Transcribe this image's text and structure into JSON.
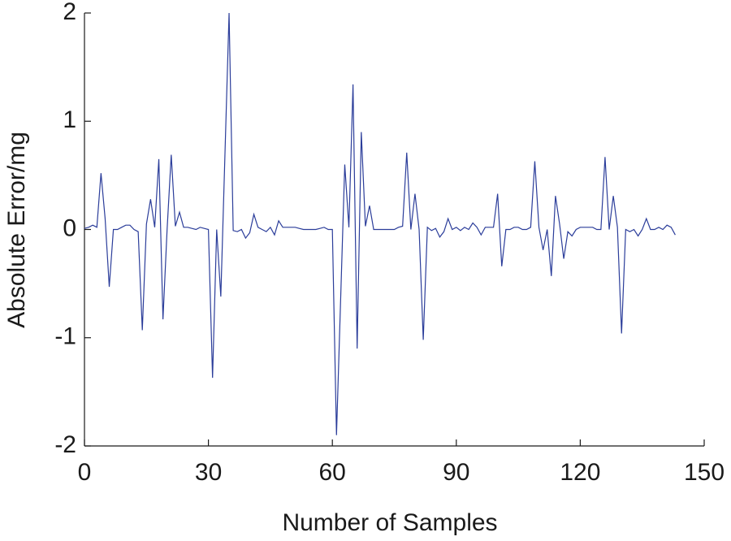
{
  "chart_data": {
    "type": "line",
    "xlabel": "Number of Samples",
    "ylabel": "Absolute Error/mg",
    "x": [
      0,
      1,
      2,
      3,
      4,
      5,
      6,
      7,
      8,
      9,
      10,
      11,
      12,
      13,
      14,
      15,
      16,
      17,
      18,
      19,
      20,
      21,
      22,
      23,
      24,
      25,
      26,
      27,
      28,
      29,
      30,
      31,
      32,
      33,
      34,
      35,
      36,
      37,
      38,
      39,
      40,
      41,
      42,
      43,
      44,
      45,
      46,
      47,
      48,
      49,
      50,
      51,
      52,
      53,
      54,
      55,
      56,
      57,
      58,
      59,
      60,
      61,
      62,
      63,
      64,
      65,
      66,
      67,
      68,
      69,
      70,
      71,
      72,
      73,
      74,
      75,
      76,
      77,
      78,
      79,
      80,
      81,
      82,
      83,
      84,
      85,
      86,
      87,
      88,
      89,
      90,
      91,
      92,
      93,
      94,
      95,
      96,
      97,
      98,
      99,
      100,
      101,
      102,
      103,
      104,
      105,
      106,
      107,
      108,
      109,
      110,
      111,
      112,
      113,
      114,
      115,
      116,
      117,
      118,
      119,
      120,
      121,
      122,
      123,
      124,
      125,
      126,
      127,
      128,
      129,
      130,
      131,
      132,
      133,
      134,
      135,
      136,
      137,
      138,
      139,
      140,
      141,
      142,
      143
    ],
    "series": [
      {
        "name": "Absolute Error",
        "color": "#2b3d9a",
        "values": [
          0.01,
          0.02,
          0.04,
          0.02,
          0.52,
          0.1,
          -0.53,
          0.0,
          0.0,
          0.02,
          0.04,
          0.04,
          0.0,
          -0.02,
          -0.93,
          0.05,
          0.28,
          0.02,
          0.65,
          -0.83,
          0.0,
          0.69,
          0.03,
          0.16,
          0.02,
          0.02,
          0.01,
          0.0,
          0.02,
          0.01,
          0.0,
          -1.37,
          0.0,
          -0.62,
          0.69,
          2.0,
          -0.01,
          -0.02,
          0.0,
          -0.08,
          -0.03,
          0.14,
          0.02,
          0.0,
          -0.02,
          0.02,
          -0.05,
          0.08,
          0.02,
          0.02,
          0.02,
          0.02,
          0.01,
          0.0,
          0.0,
          0.0,
          0.0,
          0.01,
          0.02,
          0.0,
          0.0,
          -1.9,
          -0.65,
          0.6,
          0.02,
          1.34,
          -1.1,
          0.9,
          0.03,
          0.22,
          0.0,
          0.0,
          0.0,
          0.0,
          0.0,
          0.0,
          0.02,
          0.03,
          0.71,
          0.0,
          0.33,
          0.0,
          -1.02,
          0.02,
          -0.01,
          0.01,
          -0.07,
          -0.02,
          0.1,
          0.0,
          0.02,
          -0.01,
          0.02,
          0.0,
          0.06,
          0.02,
          -0.05,
          0.02,
          0.02,
          0.02,
          0.33,
          -0.34,
          0.0,
          0.0,
          0.02,
          0.02,
          0.0,
          0.0,
          0.02,
          0.63,
          0.02,
          -0.19,
          0.0,
          -0.43,
          0.31,
          0.05,
          -0.27,
          -0.02,
          -0.06,
          0.0,
          0.02,
          0.02,
          0.02,
          0.02,
          0.0,
          0.0,
          0.67,
          0.0,
          0.31,
          0.02,
          -0.96,
          0.0,
          -0.02,
          0.0,
          -0.06,
          0.0,
          0.1,
          0.0,
          0.0,
          0.02,
          0.0,
          0.04,
          0.02,
          -0.05
        ]
      }
    ],
    "xlim": [
      0,
      150
    ],
    "xticks": [
      0,
      30,
      60,
      90,
      120,
      150
    ],
    "ylim": [
      -2,
      2
    ],
    "yticks": [
      -2,
      -1,
      0,
      1,
      2
    ],
    "grid": false
  }
}
